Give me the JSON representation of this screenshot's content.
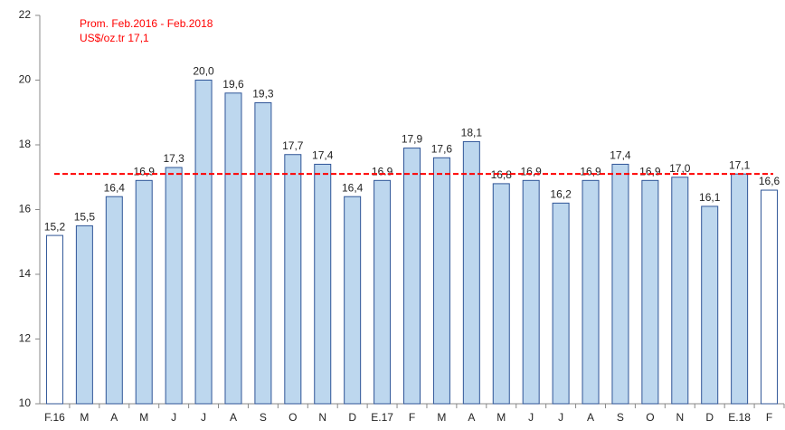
{
  "chart_data": {
    "type": "bar",
    "categories": [
      "F.16",
      "M",
      "A",
      "M",
      "J",
      "J",
      "A",
      "S",
      "O",
      "N",
      "D",
      "E.17",
      "F",
      "M",
      "A",
      "M",
      "J",
      "J",
      "A",
      "S",
      "O",
      "N",
      "D",
      "E.18",
      "F"
    ],
    "values": [
      15.2,
      15.5,
      16.4,
      16.9,
      17.3,
      20.0,
      19.6,
      19.3,
      17.7,
      17.4,
      16.4,
      16.9,
      17.9,
      17.6,
      18.1,
      16.8,
      16.9,
      16.2,
      16.9,
      17.4,
      16.9,
      17.0,
      16.1,
      17.1,
      16.6
    ],
    "value_labels": [
      "15,2",
      "15,5",
      "16,4",
      "16,9",
      "17,3",
      "20,0",
      "19,6",
      "19,3",
      "17,7",
      "17,4",
      "16,4",
      "16.9",
      "17,9",
      "17,6",
      "18,1",
      "16,8",
      "16,9",
      "16,2",
      "16,9",
      "17,4",
      "16,9",
      "17,0",
      "16,1",
      "17,1",
      "16,6"
    ],
    "colors": [
      "#ffffff",
      "#bdd7ee",
      "#bdd7ee",
      "#bdd7ee",
      "#bdd7ee",
      "#bdd7ee",
      "#bdd7ee",
      "#bdd7ee",
      "#bdd7ee",
      "#bdd7ee",
      "#bdd7ee",
      "#bdd7ee",
      "#bdd7ee",
      "#bdd7ee",
      "#bdd7ee",
      "#bdd7ee",
      "#bdd7ee",
      "#bdd7ee",
      "#bdd7ee",
      "#bdd7ee",
      "#bdd7ee",
      "#bdd7ee",
      "#bdd7ee",
      "#bdd7ee",
      "#ffffff"
    ],
    "edge_color": "#2f5597",
    "ylim": [
      10,
      22
    ],
    "yticks": [
      10,
      12,
      14,
      16,
      18,
      20,
      22
    ],
    "grid": false,
    "reference_line": {
      "value": 17.1,
      "color": "#ff0000",
      "labels": [
        "Prom. Feb.2016 - Feb.2018",
        "US$/oz.tr 17,1"
      ]
    }
  }
}
